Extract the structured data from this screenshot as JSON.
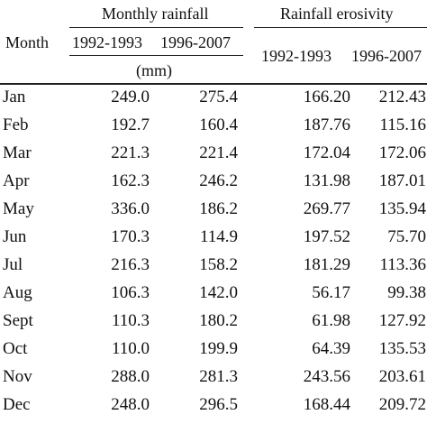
{
  "table": {
    "headers": {
      "month": "Month",
      "monthly_rainfall": "Monthly rainfall",
      "rainfall_erosivity": "Rainfall erosivity",
      "period_1": "1992-1993",
      "period_2": "1996-2007",
      "units": "(mm)"
    },
    "rows": [
      {
        "month": "Jan",
        "rain_1992_1993": "249.0",
        "rain_1996_2007": "275.4",
        "eros_1992_1993": "166.20",
        "eros_1996_2007": "212.43"
      },
      {
        "month": "Feb",
        "rain_1992_1993": "192.7",
        "rain_1996_2007": "160.4",
        "eros_1992_1993": "187.76",
        "eros_1996_2007": "115.16"
      },
      {
        "month": "Mar",
        "rain_1992_1993": "221.3",
        "rain_1996_2007": "221.4",
        "eros_1992_1993": "172.04",
        "eros_1996_2007": "172.06"
      },
      {
        "month": "Apr",
        "rain_1992_1993": "162.3",
        "rain_1996_2007": "246.2",
        "eros_1992_1993": "131.98",
        "eros_1996_2007": "187.01"
      },
      {
        "month": "May",
        "rain_1992_1993": "336.0",
        "rain_1996_2007": "186.2",
        "eros_1992_1993": "269.77",
        "eros_1996_2007": "135.94"
      },
      {
        "month": "Jun",
        "rain_1992_1993": "170.3",
        "rain_1996_2007": "114.9",
        "eros_1992_1993": "197.52",
        "eros_1996_2007": "75.70"
      },
      {
        "month": "Jul",
        "rain_1992_1993": "216.3",
        "rain_1996_2007": "158.2",
        "eros_1992_1993": "181.29",
        "eros_1996_2007": "113.36"
      },
      {
        "month": "Aug",
        "rain_1992_1993": "106.3",
        "rain_1996_2007": "142.0",
        "eros_1992_1993": "56.17",
        "eros_1996_2007": "99.38"
      },
      {
        "month": "Sept",
        "rain_1992_1993": "110.3",
        "rain_1996_2007": "180.2",
        "eros_1992_1993": "61.98",
        "eros_1996_2007": "127.92"
      },
      {
        "month": "Oct",
        "rain_1992_1993": "110.0",
        "rain_1996_2007": "199.9",
        "eros_1992_1993": "64.39",
        "eros_1996_2007": "135.53"
      },
      {
        "month": "Nov",
        "rain_1992_1993": "288.0",
        "rain_1996_2007": "281.3",
        "eros_1992_1993": "243.56",
        "eros_1996_2007": "203.61"
      },
      {
        "month": "Dec",
        "rain_1992_1993": "248.0",
        "rain_1996_2007": "296.5",
        "eros_1992_1993": "168.44",
        "eros_1996_2007": "209.72"
      }
    ]
  }
}
